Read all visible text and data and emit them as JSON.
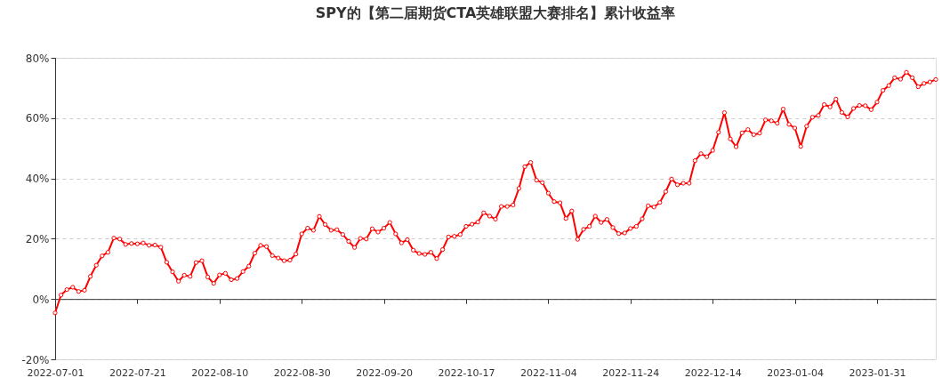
{
  "chart_data": {
    "type": "line",
    "title": "SPY的【第二届期货CTA英雄联盟大赛排名】累计收益率",
    "categories": [
      "2022-07-01",
      null,
      null,
      null,
      null,
      null,
      null,
      null,
      null,
      null,
      null,
      null,
      null,
      null,
      "2022-07-21",
      null,
      null,
      null,
      null,
      null,
      null,
      null,
      null,
      null,
      null,
      null,
      null,
      null,
      "2022-08-10",
      null,
      null,
      null,
      null,
      null,
      null,
      null,
      null,
      null,
      null,
      null,
      null,
      null,
      "2022-08-30",
      null,
      null,
      null,
      null,
      null,
      null,
      null,
      null,
      null,
      null,
      null,
      null,
      null,
      "2022-09-20",
      null,
      null,
      null,
      null,
      null,
      null,
      null,
      null,
      null,
      null,
      null,
      null,
      null,
      "2022-10-17",
      null,
      null,
      null,
      null,
      null,
      null,
      null,
      null,
      null,
      null,
      null,
      null,
      null,
      "2022-11-04",
      null,
      null,
      null,
      null,
      null,
      null,
      null,
      null,
      null,
      null,
      null,
      null,
      null,
      "2022-11-24",
      null,
      null,
      null,
      null,
      null,
      null,
      null,
      null,
      null,
      null,
      null,
      null,
      null,
      "2022-12-14",
      null,
      null,
      null,
      null,
      null,
      null,
      null,
      null,
      null,
      null,
      null,
      null,
      null,
      "2023-01-04",
      null,
      null,
      null,
      null,
      null,
      null,
      null,
      null,
      null,
      null,
      null,
      null,
      null,
      "2023-01-31",
      null,
      null,
      null,
      null,
      null,
      null,
      null,
      null,
      null,
      null
    ],
    "series": [
      {
        "color": "#ff0000",
        "values": [
          -4.6,
          1.3,
          3.1,
          3.9,
          2.5,
          2.9,
          7.5,
          11.2,
          14.3,
          15.5,
          20.2,
          19.9,
          18.1,
          18.4,
          18.3,
          18.6,
          17.8,
          17.9,
          17.2,
          12.2,
          9.0,
          5.9,
          7.9,
          7.5,
          12.1,
          12.7,
          7.3,
          5.2,
          8.0,
          8.5,
          6.4,
          6.8,
          9.1,
          10.9,
          15.2,
          17.8,
          17.4,
          14.4,
          13.6,
          12.7,
          12.9,
          14.9,
          21.6,
          23.5,
          22.8,
          27.4,
          24.7,
          22.8,
          23.0,
          21.4,
          19.1,
          17.1,
          20.1,
          19.9,
          23.3,
          22.2,
          23.5,
          25.4,
          21.6,
          18.6,
          19.7,
          16.2,
          15.1,
          14.8,
          15.5,
          13.4,
          16.4,
          20.6,
          20.8,
          21.4,
          24.1,
          24.8,
          25.5,
          28.6,
          27.5,
          26.5,
          30.7,
          30.7,
          31.2,
          36.7,
          43.9,
          45.3,
          39.4,
          38.6,
          35.1,
          32.3,
          31.9,
          26.7,
          29.2,
          19.8,
          23.1,
          24.1,
          27.5,
          25.4,
          26.4,
          23.7,
          21.7,
          21.9,
          23.4,
          24.1,
          26.6,
          30.9,
          30.5,
          32.0,
          35.6,
          39.8,
          37.9,
          38.4,
          38.4,
          45.9,
          48.2,
          47.2,
          49.3,
          55.3,
          61.8,
          53.1,
          50.5,
          55.1,
          56.2,
          54.5,
          55.0,
          59.4,
          59.1,
          58.3,
          63.0,
          57.9,
          56.7,
          50.6,
          57.3,
          60.3,
          60.9,
          64.5,
          63.7,
          66.3,
          61.9,
          60.4,
          63.2,
          64.2,
          64.1,
          62.8,
          65.3,
          69.2,
          70.8,
          73.4,
          72.9,
          75.2,
          73.4,
          70.4,
          71.5,
          72.0,
          72.8
        ]
      }
    ],
    "ylim": [
      -20,
      80
    ],
    "yticks": [
      {
        "value": -20,
        "label": "-20%"
      },
      {
        "value": 0,
        "label": "0%"
      },
      {
        "value": 20,
        "label": "20%"
      },
      {
        "value": 40,
        "label": "40%"
      },
      {
        "value": 60,
        "label": "60%"
      },
      {
        "value": 80,
        "label": "80%"
      }
    ],
    "grid": "y",
    "marker": "circle",
    "line_style": "solid"
  }
}
